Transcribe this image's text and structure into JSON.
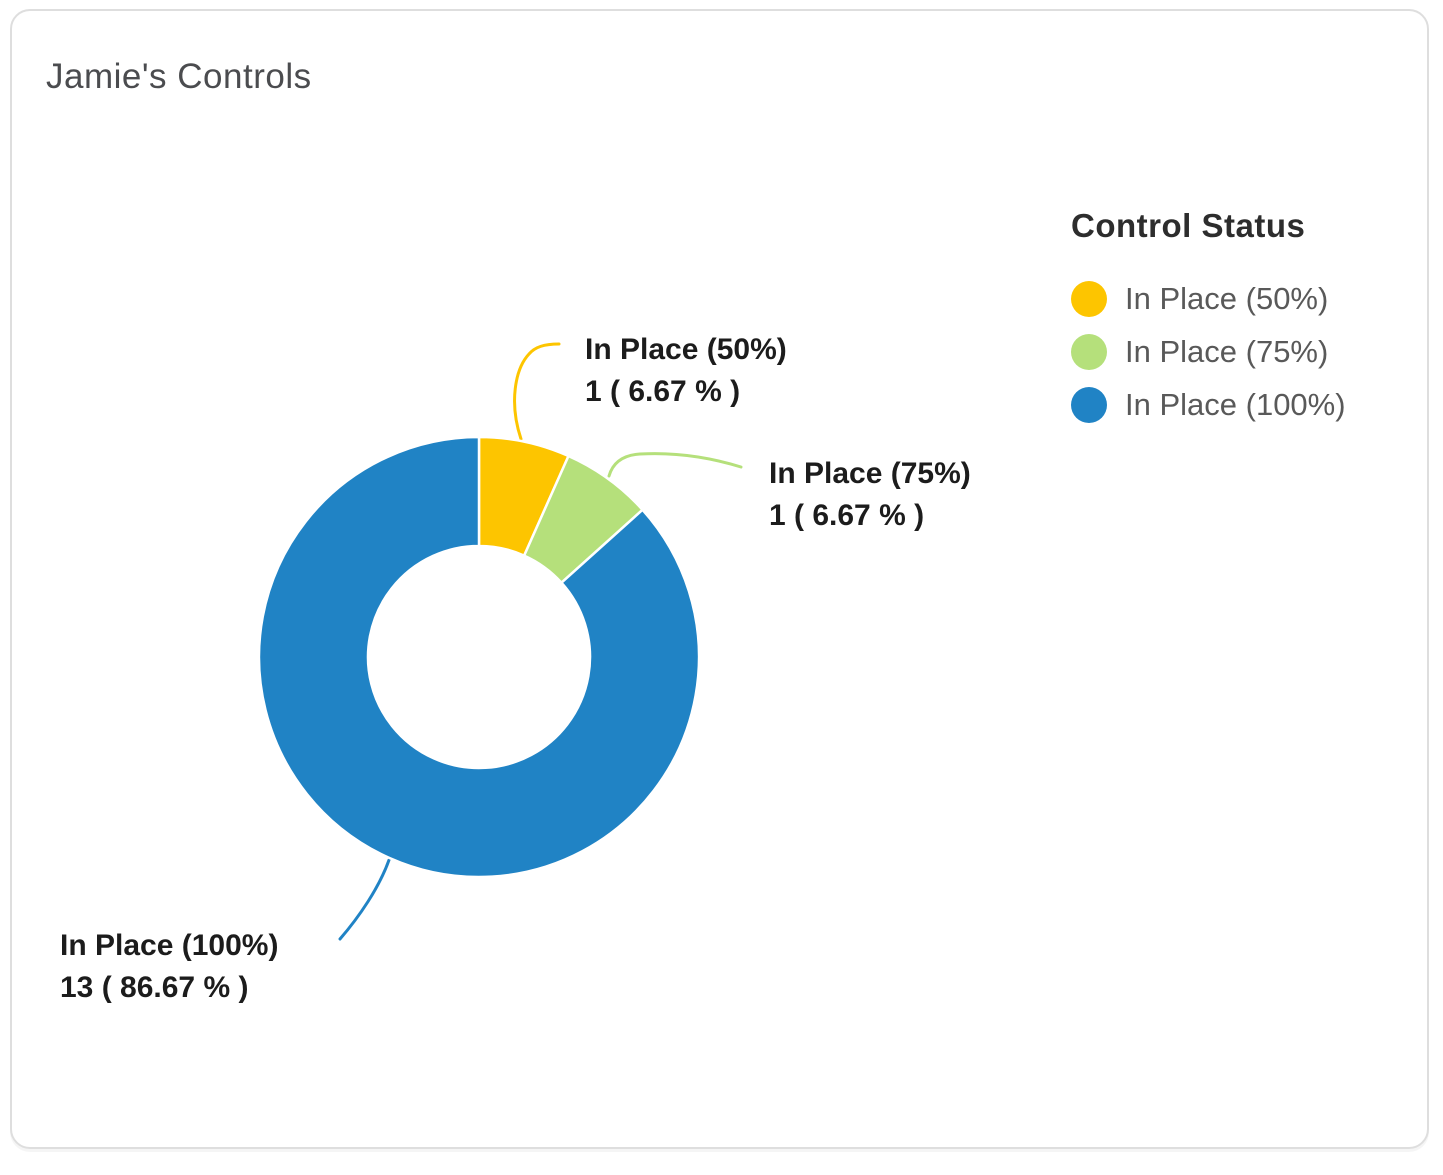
{
  "card": {
    "title": "Jamie's Controls",
    "border_color": "#dedede"
  },
  "chart_data": {
    "type": "pie",
    "subtype": "donut",
    "title": "Jamie's Controls",
    "categories": [
      "In Place (50%)",
      "In Place (75%)",
      "In Place (100%)"
    ],
    "values": [
      1,
      1,
      13
    ],
    "total": 15,
    "percentages": [
      6.67,
      6.67,
      86.67
    ],
    "colors": [
      "#fdc500",
      "#b5e07b",
      "#2083c5"
    ],
    "start_angle_deg": 0,
    "direction": "clockwise",
    "inner_radius_ratio": 0.505,
    "legend_title": "Control Status",
    "legend_position": "right",
    "callouts": [
      {
        "name": "In Place (50%)",
        "value_text": "1 ( 6.67 % )"
      },
      {
        "name": "In Place (75%)",
        "value_text": "1 ( 6.67 % )"
      },
      {
        "name": "In Place (100%)",
        "value_text": "13 ( 86.67 % )"
      }
    ]
  },
  "legend": {
    "title": "Control Status",
    "items": [
      {
        "label": "In Place (50%)",
        "color": "#fdc500"
      },
      {
        "label": "In Place (75%)",
        "color": "#b5e07b"
      },
      {
        "label": "In Place (100%)",
        "color": "#2083c5"
      }
    ]
  }
}
